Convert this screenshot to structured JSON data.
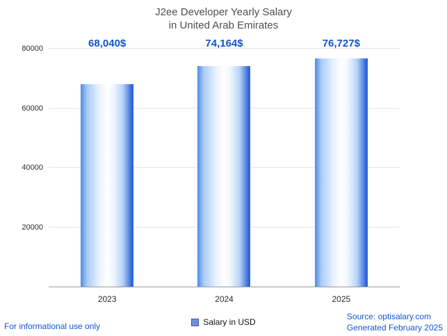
{
  "title": {
    "line1": "J2ee Developer Yearly Salary",
    "line2": "in United Arab Emirates"
  },
  "chart_data": {
    "type": "bar",
    "title": "J2ee Developer Yearly Salary in United Arab Emirates",
    "categories": [
      "2023",
      "2024",
      "2025"
    ],
    "values": [
      68040,
      74164,
      76727
    ],
    "value_labels": [
      "68,040$",
      "74,164$",
      "76,727$"
    ],
    "xlabel": "",
    "ylabel": "",
    "ylim": [
      0,
      80000
    ],
    "yticks": [
      20000,
      40000,
      60000,
      80000
    ],
    "grid": true,
    "legend_position": "bottom",
    "legend": [
      {
        "label": "Salary in USD",
        "color": "#6f8fd8"
      }
    ]
  },
  "footer": {
    "left": "For informational use only",
    "source": "Source: optisalary.com",
    "generated": "Generated February 2025"
  },
  "colors": {
    "accent_text": "#1155cc",
    "value_label": "#1155cc",
    "bar_edge": "#2e66d9",
    "grid": "#e4e4e4",
    "axis": "#9a9a9a",
    "title": "#4f4f4f"
  }
}
